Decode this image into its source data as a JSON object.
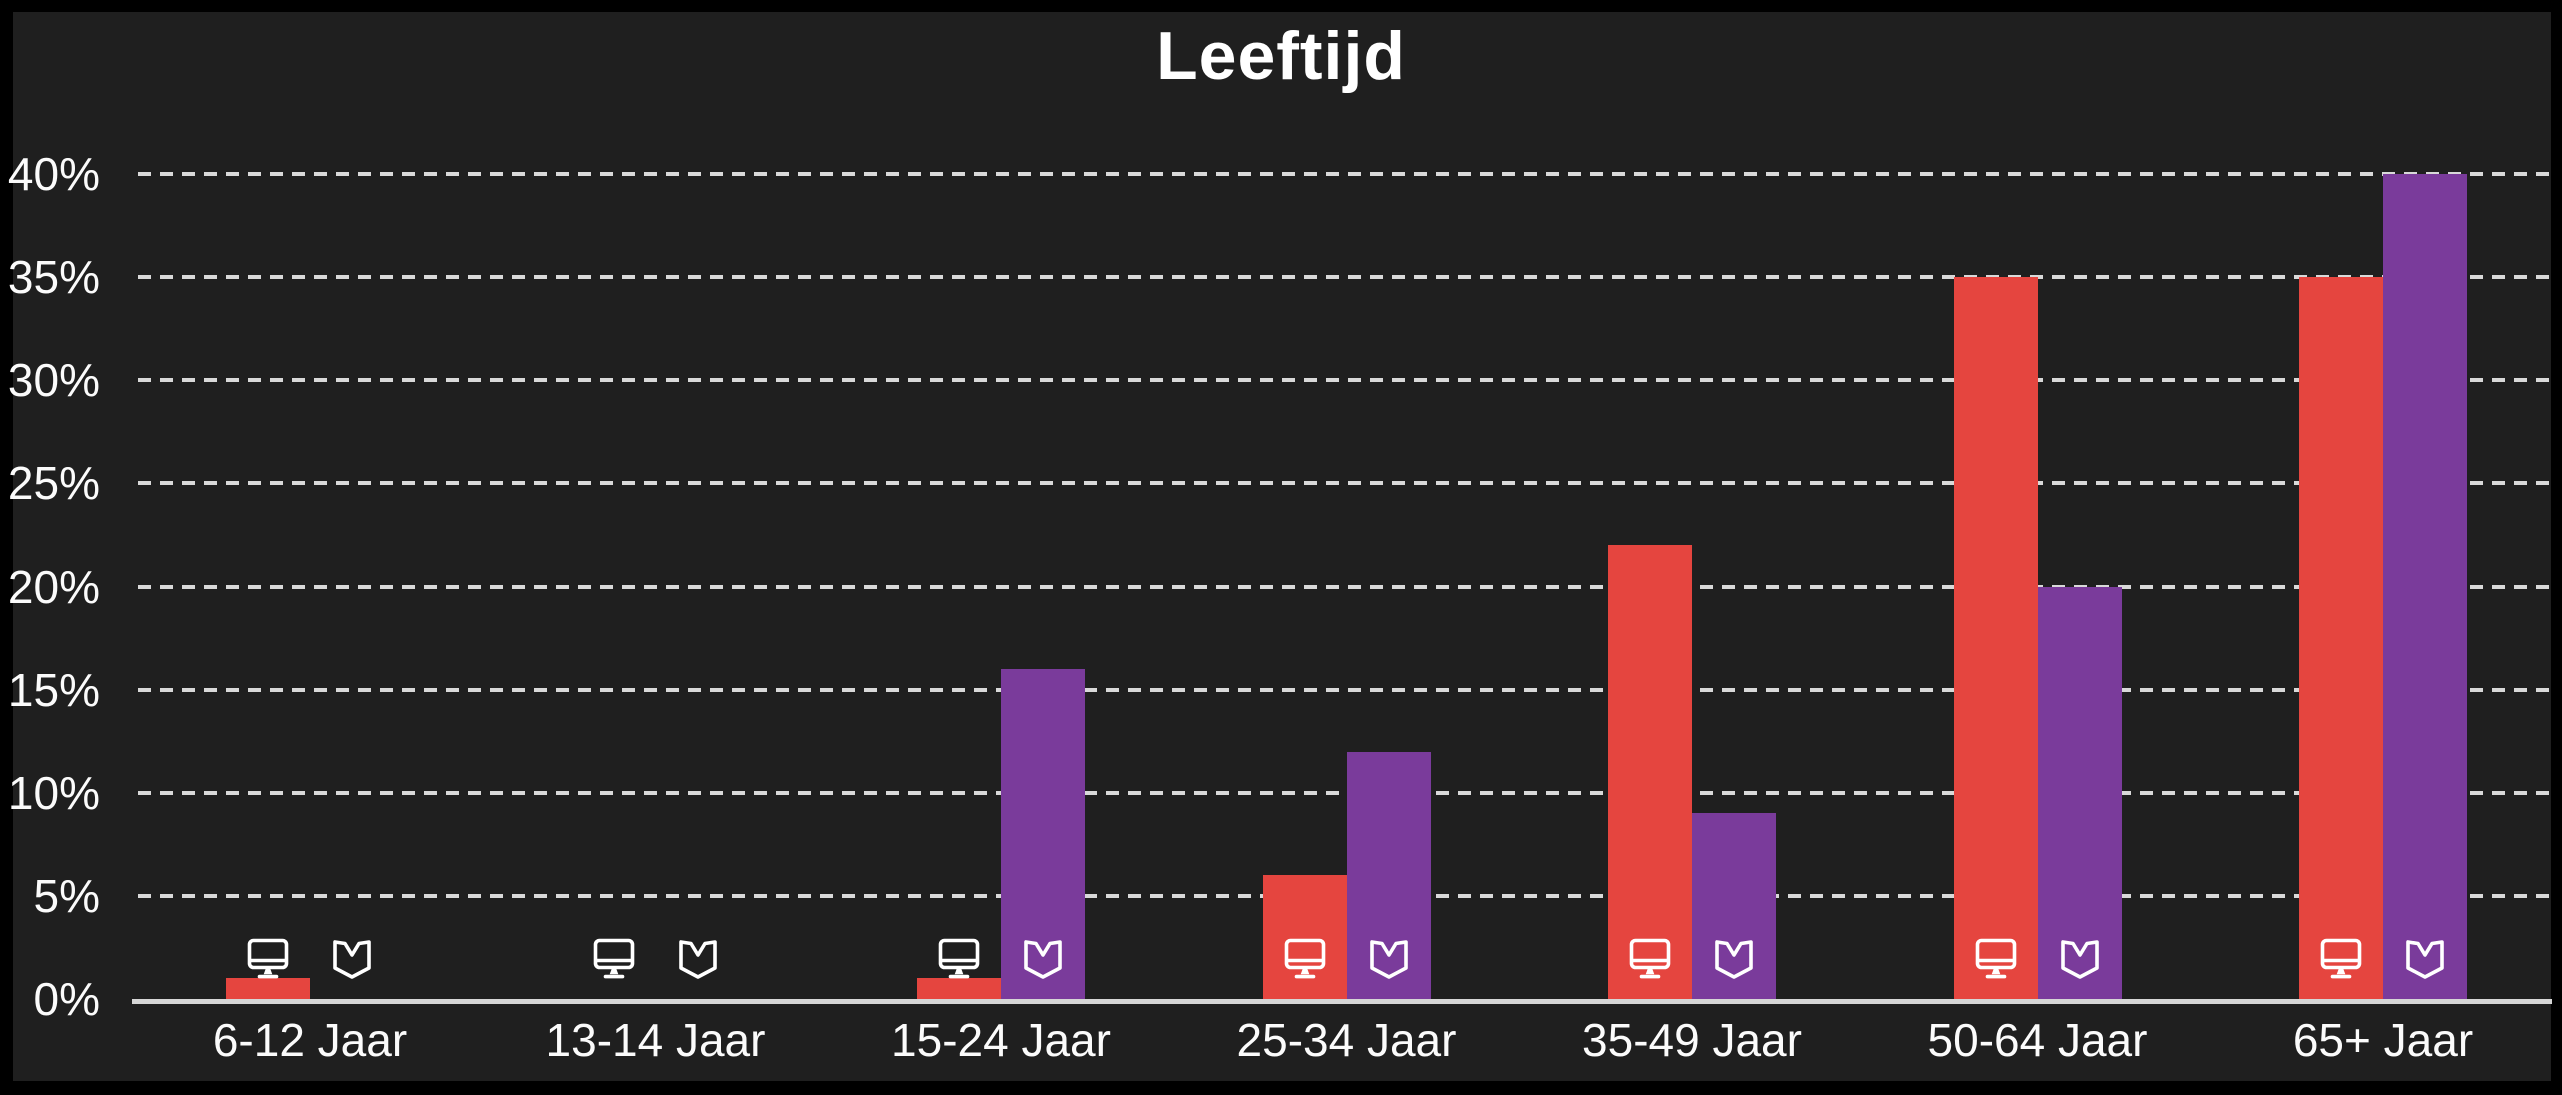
{
  "chart_data": {
    "type": "bar",
    "title": "Leeftijd",
    "categories": [
      "6-12 Jaar",
      "13-14 Jaar",
      "15-24 Jaar",
      "25-34 Jaar",
      "35-49 Jaar",
      "50-64 Jaar",
      "65+ Jaar"
    ],
    "series": [
      {
        "name": "screen",
        "icon": "monitor-icon",
        "color": "#e5453f",
        "values": [
          1,
          0,
          1,
          6,
          22,
          35,
          35
        ]
      },
      {
        "name": "book",
        "icon": "open-book-icon",
        "color": "#7a3b9b",
        "values": [
          0,
          0,
          16,
          12,
          9,
          20,
          40
        ]
      }
    ],
    "xlabel": "",
    "ylabel": "",
    "ylim": [
      0,
      40
    ],
    "yticks": [
      {
        "value": 40,
        "label": "40%"
      },
      {
        "value": 35,
        "label": "35%"
      },
      {
        "value": 30,
        "label": "30%"
      },
      {
        "value": 25,
        "label": "25%"
      },
      {
        "value": 20,
        "label": "20%"
      },
      {
        "value": 15,
        "label": "15%"
      },
      {
        "value": 10,
        "label": "10%"
      },
      {
        "value": 5,
        "label": "5%"
      },
      {
        "value": 0,
        "label": "0%"
      }
    ],
    "grid": "horizontal-dashed",
    "legend_position": "icons-at-bar-base",
    "colors": {
      "background": "#1f1f1f",
      "frame": "#000000",
      "text": "#fbfbfb",
      "gridline": "#d9d9d9",
      "axis_line": "#d6d6d6",
      "icon": "#ffffff"
    }
  }
}
